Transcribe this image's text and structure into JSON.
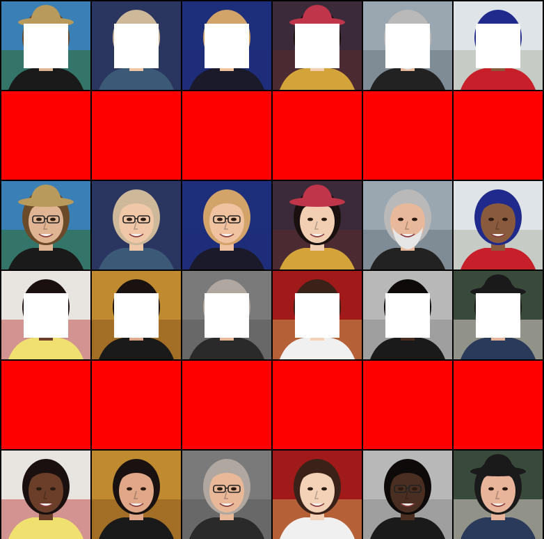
{
  "grid": {
    "columns": 6,
    "rows": 6,
    "mask_color": "#ffffff",
    "fill_color": "#ff0000",
    "row_roles": [
      "masked-input",
      "red-fill",
      "reference",
      "masked-input",
      "red-fill",
      "reference"
    ]
  },
  "faces": [
    {
      "id": "face-1",
      "bg": "#3a7fb5",
      "bg2": "#2f6d2a",
      "skin": "#e0b594",
      "hair": "#6b4a2a",
      "hat": "#b89a5c",
      "shirt": "#1a1a1a",
      "glasses": true,
      "beard": false
    },
    {
      "id": "face-2",
      "bg": "#2a3560",
      "bg2": "#2a3560",
      "skin": "#f0c8a8",
      "hair": "#cdb999",
      "hat": "",
      "shirt": "#3c5a78",
      "glasses": true,
      "beard": false
    },
    {
      "id": "face-3",
      "bg": "#1d2e7a",
      "bg2": "#1d2e7a",
      "skin": "#f0c2a0",
      "hair": "#d2a46a",
      "hat": "",
      "shirt": "#1a1a2a",
      "glasses": true,
      "beard": false
    },
    {
      "id": "face-4",
      "bg": "#3b2a3a",
      "bg2": "#5a2a2a",
      "skin": "#f2cfb2",
      "hair": "#1a1010",
      "hat": "#c0354a",
      "shirt": "#d4a43a",
      "glasses": false,
      "beard": false
    },
    {
      "id": "face-5",
      "bg": "#9aa6b0",
      "bg2": "#6a7580",
      "skin": "#e8b89a",
      "hair": "#b9b9b9",
      "hat": "",
      "shirt": "#222222",
      "glasses": false,
      "beard": true
    },
    {
      "id": "face-6",
      "bg": "#dfe4e8",
      "bg2": "#b0b8a8",
      "skin": "#8a5a3c",
      "hair": "#1f2a8c",
      "hat": "",
      "shirt": "#c8202a",
      "glasses": false,
      "beard": false
    },
    {
      "id": "face-7",
      "bg": "#e8e4e0",
      "bg2": "#c05050",
      "skin": "#6a3e28",
      "hair": "#1a1010",
      "hat": "",
      "shirt": "#f0e070",
      "glasses": false,
      "beard": false
    },
    {
      "id": "face-8",
      "bg": "#c08a30",
      "bg2": "#8a5a20",
      "skin": "#e0a888",
      "hair": "#1a1210",
      "hat": "",
      "shirt": "#1a1a1a",
      "glasses": false,
      "beard": false
    },
    {
      "id": "face-9",
      "bg": "#7a7a7a",
      "bg2": "#5a5a5a",
      "skin": "#e8b898",
      "hair": "#b0a8a0",
      "hat": "",
      "shirt": "#2a2a2a",
      "glasses": true,
      "beard": false
    },
    {
      "id": "face-10",
      "bg": "#a01a1a",
      "bg2": "#c89a50",
      "skin": "#f4d2b8",
      "hair": "#3a2218",
      "hat": "",
      "shirt": "#f0f0f0",
      "glasses": false,
      "beard": false
    },
    {
      "id": "face-11",
      "bg": "#b8b8b8",
      "bg2": "#8a8a8a",
      "skin": "#4a2e22",
      "hair": "#0e0a0a",
      "hat": "",
      "shirt": "#1a1a1a",
      "glasses": true,
      "beard": false
    },
    {
      "id": "face-12",
      "bg": "#3a4a3a",
      "bg2": "#d8d0c8",
      "skin": "#e8b49a",
      "hair": "#1a1a1a",
      "hat": "#1a1a1a",
      "shirt": "#2a3a5a",
      "glasses": false,
      "beard": false
    }
  ]
}
